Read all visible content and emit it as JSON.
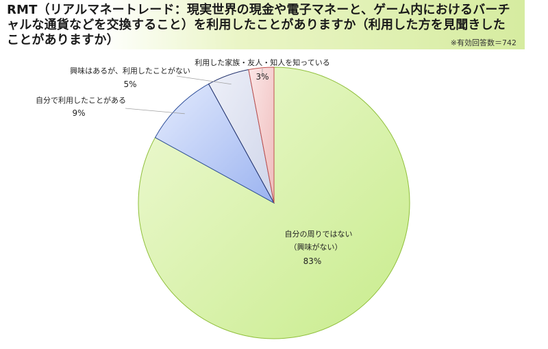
{
  "title": "RMT（リアルマネートレード：現実世界の現金や電子マネーと、ゲーム内におけるバーチャルな通貨などを交換すること）を利用したことがありますか（利用した方を見聞きしたことがありますか）",
  "note": "※有効回答数＝742",
  "chart_data": {
    "type": "pie",
    "start_angle_deg": 0,
    "direction": "clockwise",
    "slices": [
      {
        "label": "自分の周りではない",
        "sublabel": "（興味がない）",
        "percent_text": "83%",
        "value": 83,
        "color": "#d3f0a4"
      },
      {
        "label": "自分で利用したことがある",
        "sublabel": "",
        "percent_text": "9%",
        "value": 9,
        "color": "#b7c9f5"
      },
      {
        "label": "興味はあるが、利用したことがない",
        "sublabel": "",
        "percent_text": "5%",
        "value": 5,
        "color": "#dde2f2"
      },
      {
        "label": "利用した家族・友人・知人を知っている",
        "sublabel": "",
        "percent_text": "3%",
        "value": 3,
        "color": "#f5cfcf"
      }
    ],
    "edge_colors": [
      "#8fbf3a",
      "#2f4f9a",
      "#1f2f6a",
      "#c0504d"
    ]
  }
}
